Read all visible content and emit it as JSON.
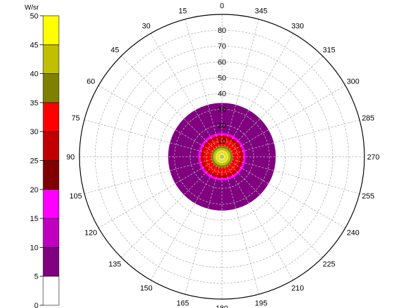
{
  "chart_data": {
    "type": "polar-heatmap",
    "colorbar": {
      "unit": "W/sr",
      "ticks": [
        "0",
        "5",
        "10",
        "15",
        "20",
        "25",
        "30",
        "35",
        "40",
        "45",
        "50"
      ],
      "min": 0,
      "max": 50,
      "bins": [
        {
          "range": [
            0,
            5
          ],
          "color": "#ffffff"
        },
        {
          "range": [
            5,
            10
          ],
          "color": "#800080"
        },
        {
          "range": [
            10,
            15
          ],
          "color": "#c000c0"
        },
        {
          "range": [
            15,
            20
          ],
          "color": "#ff00ff"
        },
        {
          "range": [
            20,
            25
          ],
          "color": "#800000"
        },
        {
          "range": [
            25,
            30
          ],
          "color": "#c00000"
        },
        {
          "range": [
            30,
            35
          ],
          "color": "#ff0000"
        },
        {
          "range": [
            35,
            40
          ],
          "color": "#808000"
        },
        {
          "range": [
            40,
            45
          ],
          "color": "#c0c000"
        },
        {
          "range": [
            45,
            50
          ],
          "color": "#ffff00"
        }
      ]
    },
    "angle_ticks": [
      "0",
      "15",
      "30",
      "45",
      "60",
      "75",
      "90",
      "105",
      "120",
      "135",
      "150",
      "165",
      "180",
      "195",
      "210",
      "225",
      "240",
      "255",
      "270",
      "285",
      "300",
      "315",
      "330",
      "345"
    ],
    "angle_step_deg": 15,
    "angle_direction": "counterclockwise",
    "radial_ticks": [
      "10",
      "20",
      "30",
      "40",
      "50",
      "60",
      "70",
      "80"
    ],
    "radial_max": 90,
    "grid": true,
    "contours": [
      {
        "theta_max": 34,
        "color": "#800080",
        "level": "5-10"
      },
      {
        "theta_max": 15,
        "color": "#ff00ff",
        "level": "15-20"
      },
      {
        "theta_max": 13.5,
        "color": "#c00000",
        "level": "25-30"
      },
      {
        "theta_max": 11.5,
        "color": "#ff0000",
        "level": "30-35"
      },
      {
        "theta_max": 7,
        "color": "#808000",
        "level": "35-40"
      },
      {
        "theta_max": 5.5,
        "color": "#c0c000",
        "level": "40-45"
      },
      {
        "theta_max": 4,
        "color": "#ffff00",
        "level": "45-50"
      }
    ]
  }
}
